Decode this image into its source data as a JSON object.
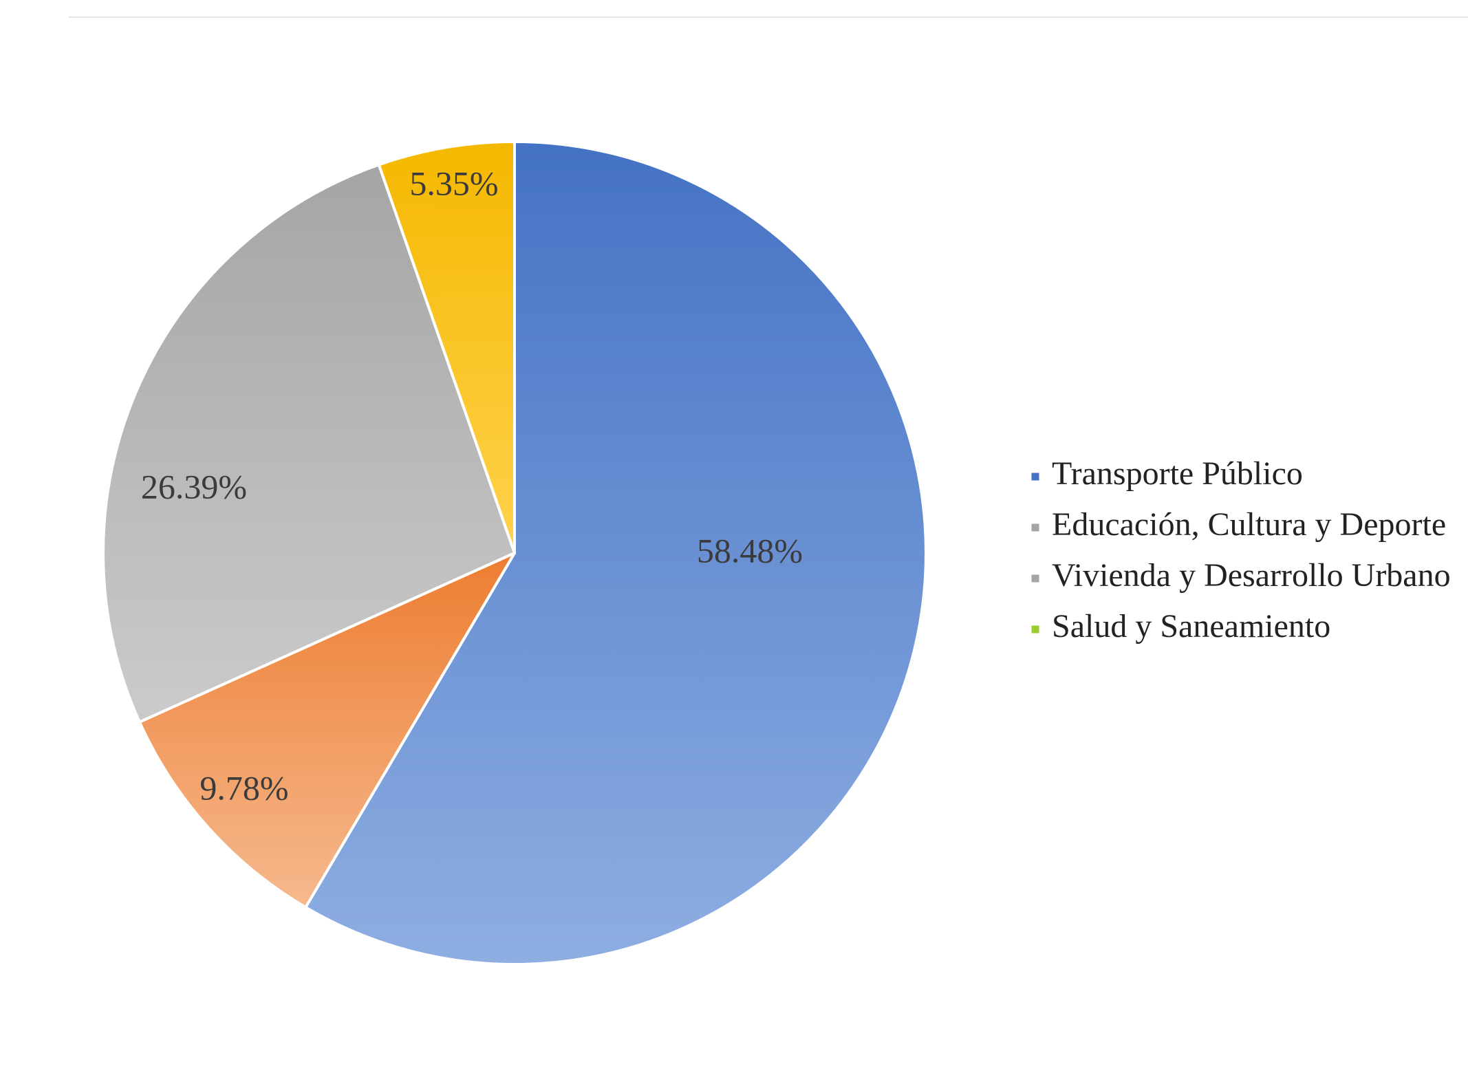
{
  "chart_data": {
    "type": "pie",
    "start_angle": "12 o'clock",
    "direction": "clockwise",
    "slices": [
      {
        "name": "Transporte Público",
        "value": 58.48,
        "label": "58.48%",
        "color": "#5b87d4",
        "color_dark": "#4472c4",
        "color_light": "#8eaee2"
      },
      {
        "name": "Educación, Cultura y Deporte",
        "value": 9.78,
        "label": "9.78%",
        "color": "#f1955a",
        "color_dark": "#ed7d31",
        "color_light": "#f6b98e"
      },
      {
        "name": "Vivienda y Desarrollo Urbano",
        "value": 26.39,
        "label": "26.39%",
        "color": "#b4b4b4",
        "color_dark": "#a5a5a5",
        "color_light": "#cbcbcb"
      },
      {
        "name": "Salud y Saneamiento",
        "value": 5.35,
        "label": "5.35%",
        "color": "#ffc000",
        "color_dark": "#f5b800",
        "color_light": "#ffd24d"
      }
    ],
    "legend": {
      "placement": "right",
      "entries": [
        {
          "label": "Transporte Público",
          "marker_color": "#4472c4"
        },
        {
          "label": "Educación, Cultura y Deporte",
          "marker_color": "#a5a5a5"
        },
        {
          "label": "Vivienda y Desarrollo Urbano",
          "marker_color": "#a5a5a5"
        },
        {
          "label": "Salud y Saneamiento",
          "marker_color": "#9acd32"
        }
      ]
    }
  }
}
